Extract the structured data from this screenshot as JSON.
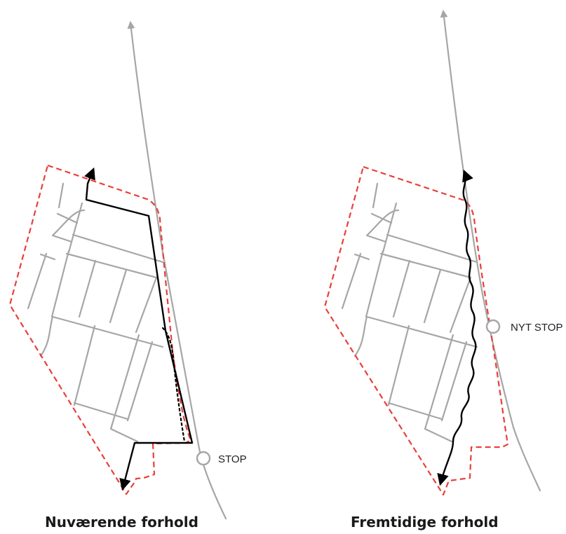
{
  "panels": [
    {
      "caption": "Nuværende forhold",
      "stop_label": "STOP"
    },
    {
      "caption": "Fremtidige forhold",
      "stop_label": "NYT STOP"
    }
  ],
  "colors": {
    "boundary": "#e8403a",
    "road": "#a6a6a6",
    "route": "#000000"
  }
}
